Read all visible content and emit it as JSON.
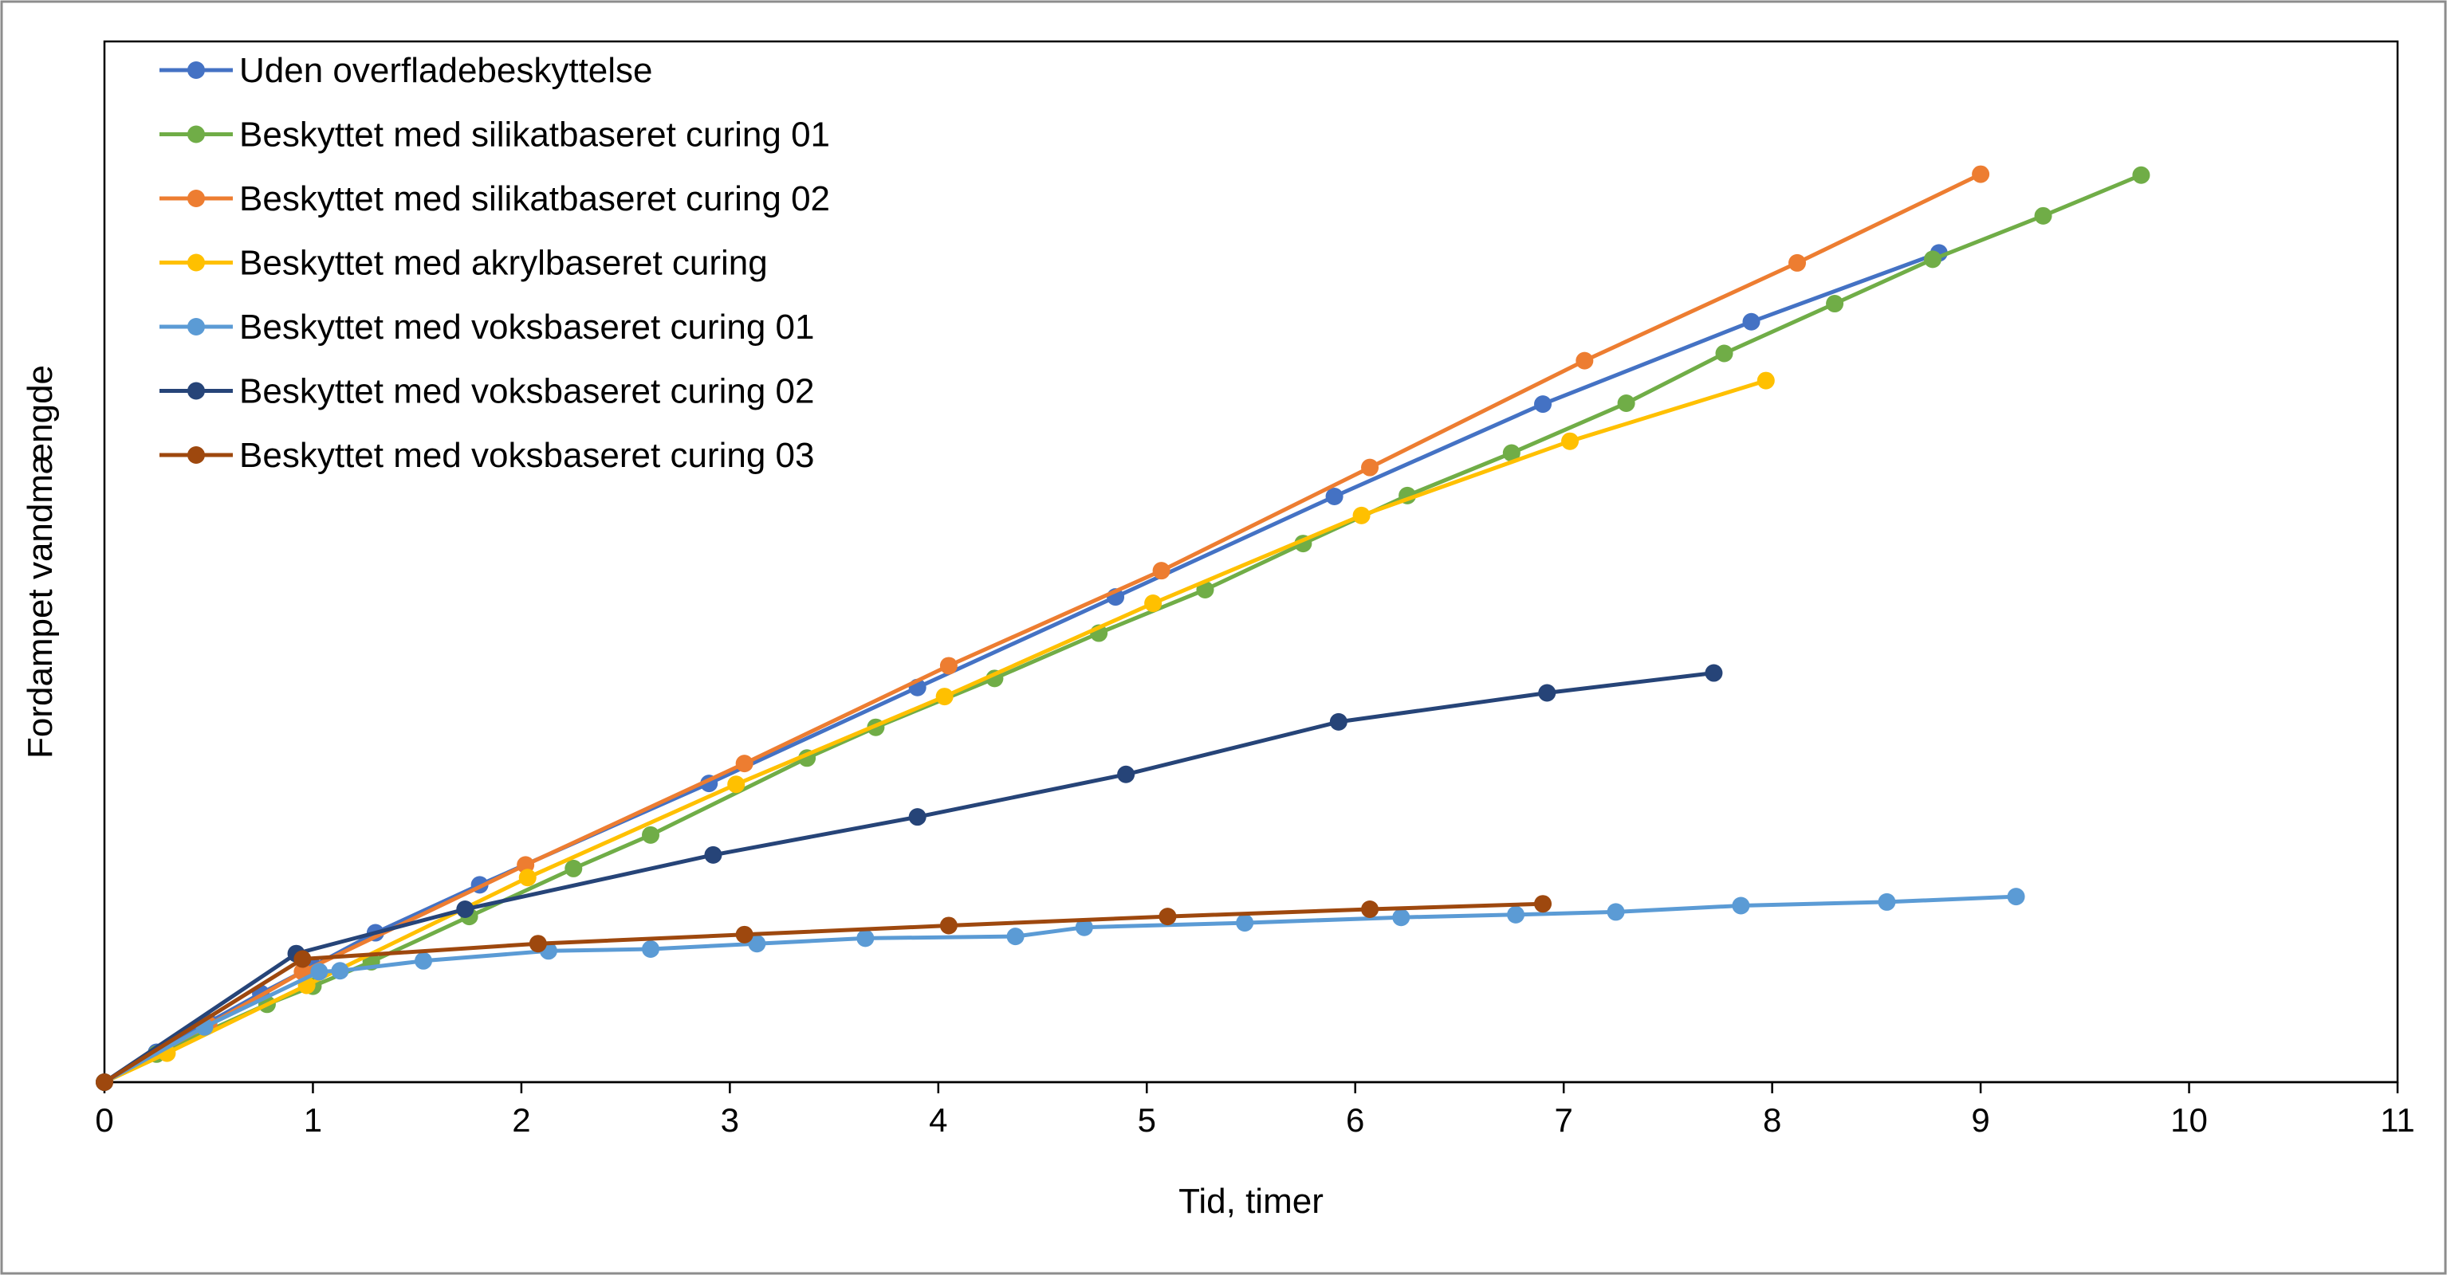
{
  "chart_data": {
    "type": "line",
    "title": "",
    "xlabel": "Tid, timer",
    "ylabel": "Fordampet vandmængde",
    "xlim": [
      0,
      11
    ],
    "ylim": [
      0,
      100
    ],
    "xticks": [
      "0",
      "1",
      "2",
      "3",
      "4",
      "5",
      "6",
      "7",
      "8",
      "9",
      "10",
      "11"
    ],
    "y_tick_labels_shown": false,
    "legend_position": "top-left",
    "series": [
      {
        "name": "Uden overfladebeskyttelse",
        "color": "#4472C4",
        "x": [
          0,
          0.25,
          0.5,
          0.75,
          1.0,
          1.3,
          1.8,
          2.9,
          3.9,
          4.85,
          5.9,
          6.9,
          7.9,
          8.8
        ],
        "y": [
          0,
          3.3,
          6.6,
          9.8,
          12.8,
          16.5,
          21.8,
          33.0,
          43.6,
          53.6,
          64.7,
          74.9,
          84.0,
          91.6
        ]
      },
      {
        "name": "Beskyttet med silikatbaseret curing 01",
        "color": "#70AD47",
        "x": [
          0,
          0.25,
          0.78,
          1.0,
          1.28,
          1.75,
          2.25,
          2.62,
          3.37,
          3.7,
          4.27,
          4.77,
          5.28,
          5.75,
          6.25,
          6.75,
          7.3,
          7.77,
          8.3,
          8.77,
          9.3,
          9.77
        ],
        "y": [
          0,
          3.1,
          8.6,
          10.6,
          13.3,
          18.3,
          23.6,
          27.3,
          35.8,
          39.2,
          44.6,
          49.6,
          54.4,
          59.5,
          64.8,
          69.5,
          75.0,
          80.5,
          86.0,
          90.9,
          95.7,
          100.2
        ]
      },
      {
        "name": "Beskyttet med silikatbaseret curing 02",
        "color": "#ED7D31",
        "x": [
          0,
          0.5,
          0.95,
          2.02,
          3.07,
          4.05,
          5.07,
          6.07,
          7.1,
          8.12,
          9.0
        ],
        "y": [
          0,
          6.3,
          12.2,
          24.0,
          35.2,
          46.0,
          56.5,
          67.9,
          79.7,
          90.5,
          100.3
        ]
      },
      {
        "name": "Beskyttet med akrylbaseret curing",
        "color": "#FFC000",
        "x": [
          0,
          0.3,
          0.97,
          2.03,
          3.03,
          4.03,
          5.03,
          6.03,
          7.03,
          7.97
        ],
        "y": [
          0,
          3.2,
          10.7,
          22.6,
          32.9,
          42.6,
          52.9,
          62.6,
          70.8,
          77.5
        ]
      },
      {
        "name": "Beskyttet med voksbaseret curing 01",
        "color": "#5B9BD5",
        "x": [
          0,
          0.48,
          1.03,
          1.13,
          1.53,
          2.13,
          2.62,
          3.13,
          3.65,
          4.37,
          4.7,
          5.47,
          6.22,
          6.77,
          7.25,
          7.85,
          8.55,
          9.17
        ],
        "y": [
          0,
          6.1,
          12.2,
          12.3,
          13.4,
          14.5,
          14.7,
          15.3,
          15.9,
          16.1,
          17.1,
          17.6,
          18.2,
          18.5,
          18.8,
          19.5,
          19.9,
          20.5
        ]
      },
      {
        "name": "Beskyttet med voksbaseret curing 02",
        "color": "#264478",
        "x": [
          0,
          0.92,
          1.73,
          2.92,
          3.9,
          4.9,
          5.92,
          6.92,
          7.72
        ],
        "y": [
          0,
          14.2,
          19.1,
          25.1,
          29.3,
          34.0,
          39.8,
          43.0,
          45.2
        ]
      },
      {
        "name": "Beskyttet med voksbaseret curing 03",
        "color": "#9E480E",
        "x": [
          0,
          0.95,
          2.08,
          3.07,
          4.05,
          5.1,
          6.07,
          6.9
        ],
        "y": [
          0,
          13.6,
          15.3,
          16.3,
          17.3,
          18.3,
          19.1,
          19.7
        ]
      }
    ]
  }
}
